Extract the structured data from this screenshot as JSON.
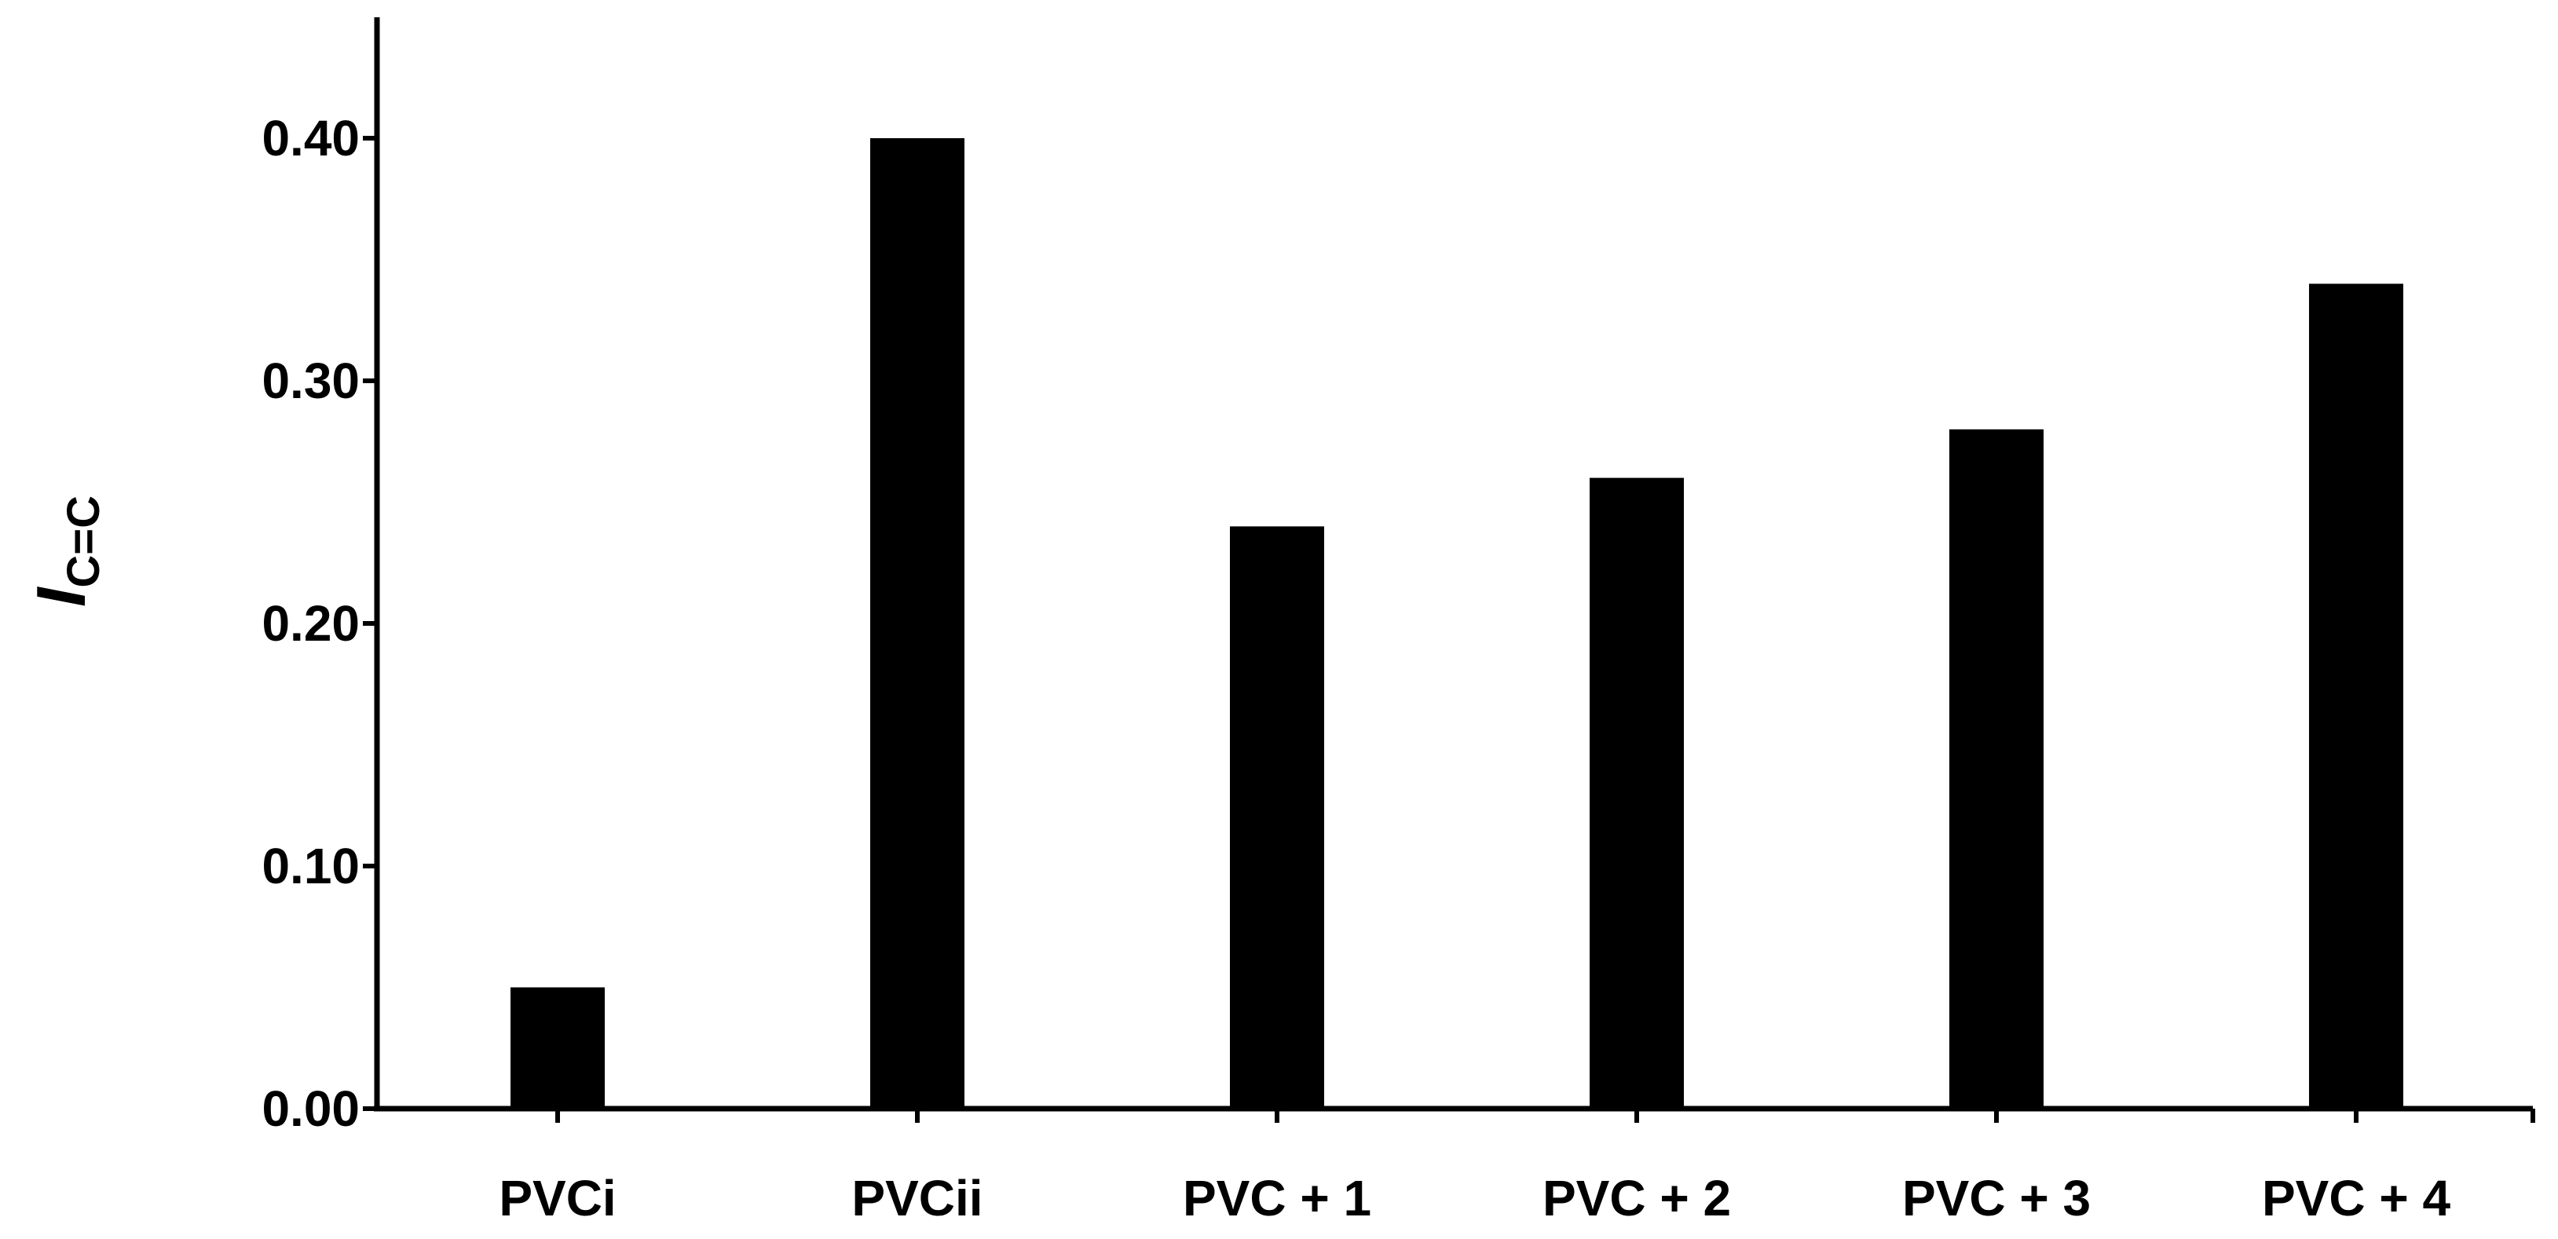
{
  "chart_data": {
    "type": "bar",
    "categories": [
      "PVCi",
      "PVCii",
      "PVC + 1",
      "PVC + 2",
      "PVC + 3",
      "PVC + 4"
    ],
    "values": [
      0.05,
      0.4,
      0.24,
      0.26,
      0.28,
      0.34
    ],
    "ylabel": "I",
    "ylabel_subscript": "C=C",
    "ylim": [
      0,
      0.45
    ],
    "yticks": [
      0.0,
      0.1,
      0.2,
      0.3,
      0.4
    ],
    "ytick_labels": [
      "0.00",
      "0.10",
      "0.20",
      "0.30",
      "0.40"
    ],
    "grid": false,
    "legend": "none",
    "bar_color": "#000000",
    "axis_color": "#000000"
  }
}
